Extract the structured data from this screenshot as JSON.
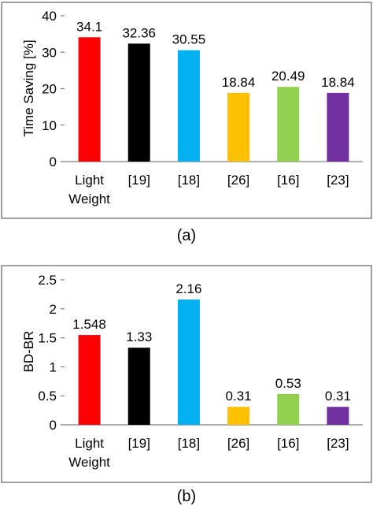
{
  "colors": [
    "#ff0000",
    "#000000",
    "#00b0f0",
    "#ffc000",
    "#92d050",
    "#7030a0"
  ],
  "chart_data": [
    {
      "type": "bar",
      "caption": "(a)",
      "ylabel": "Time Saving [%]",
      "xlabel": "",
      "ylim": [
        0,
        40
      ],
      "yticks": [
        0,
        10,
        20,
        30,
        40
      ],
      "ytick_labels": [
        "0",
        "10",
        "20",
        "30",
        "40"
      ],
      "grid": false,
      "categories": [
        [
          "Light",
          "Weight"
        ],
        [
          "[19]"
        ],
        [
          "[18]"
        ],
        [
          "[26]"
        ],
        [
          "[16]"
        ],
        [
          "[23]"
        ]
      ],
      "values": [
        34.1,
        32.36,
        30.55,
        18.84,
        20.49,
        18.84
      ],
      "labels": [
        "34.1",
        "32.36",
        "30.55",
        "18.84",
        "20.49",
        "18.84"
      ]
    },
    {
      "type": "bar",
      "caption": "(b)",
      "ylabel": "BD-BR",
      "xlabel": "",
      "ylim": [
        0,
        2.5
      ],
      "yticks": [
        0,
        0.5,
        1,
        1.5,
        2,
        2.5
      ],
      "ytick_labels": [
        "0",
        "0.5",
        "1",
        "1.5",
        "2",
        "2.5"
      ],
      "grid": false,
      "categories": [
        [
          "Light",
          "Weight"
        ],
        [
          "[19]"
        ],
        [
          "[18]"
        ],
        [
          "[26]"
        ],
        [
          "[16]"
        ],
        [
          "[23]"
        ]
      ],
      "values": [
        1.548,
        1.33,
        2.16,
        0.31,
        0.53,
        0.31
      ],
      "labels": [
        "1.548",
        "1.33",
        "2.16",
        "0.31",
        "0.53",
        "0.31"
      ]
    }
  ]
}
